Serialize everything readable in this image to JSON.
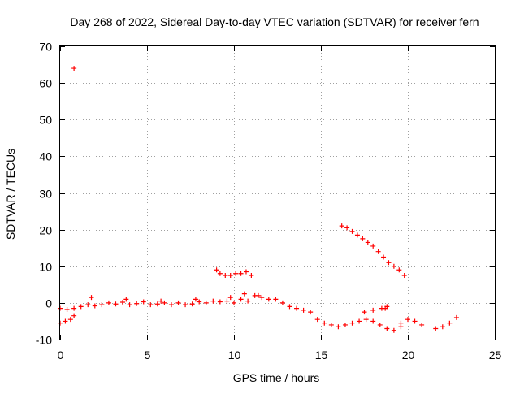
{
  "chart_data": {
    "type": "scatter",
    "title": "Day 268 of 2022, Sidereal Day-to-day VTEC variation (SDTVAR) for receiver fern",
    "xlabel": "GPS time / hours",
    "ylabel": "SDTVAR / TECUs",
    "xlim": [
      0,
      25
    ],
    "ylim": [
      -10,
      70
    ],
    "x_ticks": [
      0,
      5,
      10,
      15,
      20,
      25
    ],
    "y_ticks": [
      -10,
      0,
      10,
      20,
      30,
      40,
      50,
      60,
      70
    ],
    "grid": true,
    "marker": "+",
    "series": [
      {
        "name": "SDTVAR",
        "color": "#ff0000",
        "x": [
          0.0,
          0.3,
          0.6,
          0.8,
          0.0,
          0.4,
          0.8,
          1.2,
          1.6,
          2.0,
          2.4,
          2.8,
          3.2,
          3.6,
          4.0,
          4.4,
          4.8,
          5.2,
          5.6,
          6.0,
          6.4,
          6.8,
          7.2,
          7.6,
          8.0,
          8.4,
          8.8,
          9.2,
          9.6,
          10.0,
          10.4,
          10.8,
          11.2,
          11.6,
          12.0,
          1.8,
          3.8,
          5.8,
          7.8,
          9.8,
          10.6,
          11.4,
          12.4,
          12.8,
          13.2,
          13.6,
          14.0,
          14.4,
          14.8,
          15.2,
          15.6,
          16.0,
          16.4,
          16.8,
          17.2,
          17.6,
          18.0,
          18.4,
          18.8,
          19.2,
          19.6,
          17.5,
          18.0,
          18.5,
          18.7,
          18.8,
          19.6,
          20.0,
          20.4,
          20.8,
          21.6,
          22.0,
          22.4,
          22.8,
          9.0,
          9.2,
          9.5,
          9.8,
          10.1,
          10.4,
          10.7,
          11.0,
          16.2,
          16.5,
          16.8,
          17.1,
          17.4,
          17.7,
          18.0,
          18.3,
          18.6,
          18.9,
          19.2,
          19.5,
          19.8,
          0.8
        ],
        "y": [
          -5.5,
          -5.0,
          -4.5,
          -3.5,
          -1.5,
          -1.8,
          -1.5,
          -1.0,
          -0.5,
          -0.8,
          -0.5,
          0.0,
          -0.3,
          0.2,
          -0.5,
          -0.2,
          0.3,
          -0.5,
          -0.3,
          0.0,
          -0.5,
          0.0,
          -0.5,
          -0.3,
          0.3,
          0.0,
          0.5,
          0.3,
          0.5,
          0.0,
          1.0,
          0.5,
          2.0,
          1.5,
          1.0,
          1.5,
          1.0,
          0.5,
          1.0,
          1.5,
          2.5,
          2.0,
          1.0,
          0.0,
          -1.0,
          -1.5,
          -2.0,
          -2.5,
          -4.5,
          -5.5,
          -6.0,
          -6.5,
          -6.0,
          -5.5,
          -5.0,
          -4.5,
          -5.0,
          -6.0,
          -7.0,
          -7.5,
          -6.5,
          -2.5,
          -2.0,
          -1.5,
          -1.5,
          -1.0,
          -5.5,
          -4.5,
          -5.0,
          -6.0,
          -7.0,
          -6.5,
          -5.5,
          -4.0,
          9.0,
          8.0,
          7.5,
          7.5,
          8.0,
          8.0,
          8.5,
          7.5,
          21.0,
          20.5,
          19.5,
          18.5,
          17.5,
          16.5,
          15.5,
          14.0,
          12.5,
          11.0,
          10.0,
          9.0,
          7.5,
          64.0
        ]
      }
    ]
  }
}
